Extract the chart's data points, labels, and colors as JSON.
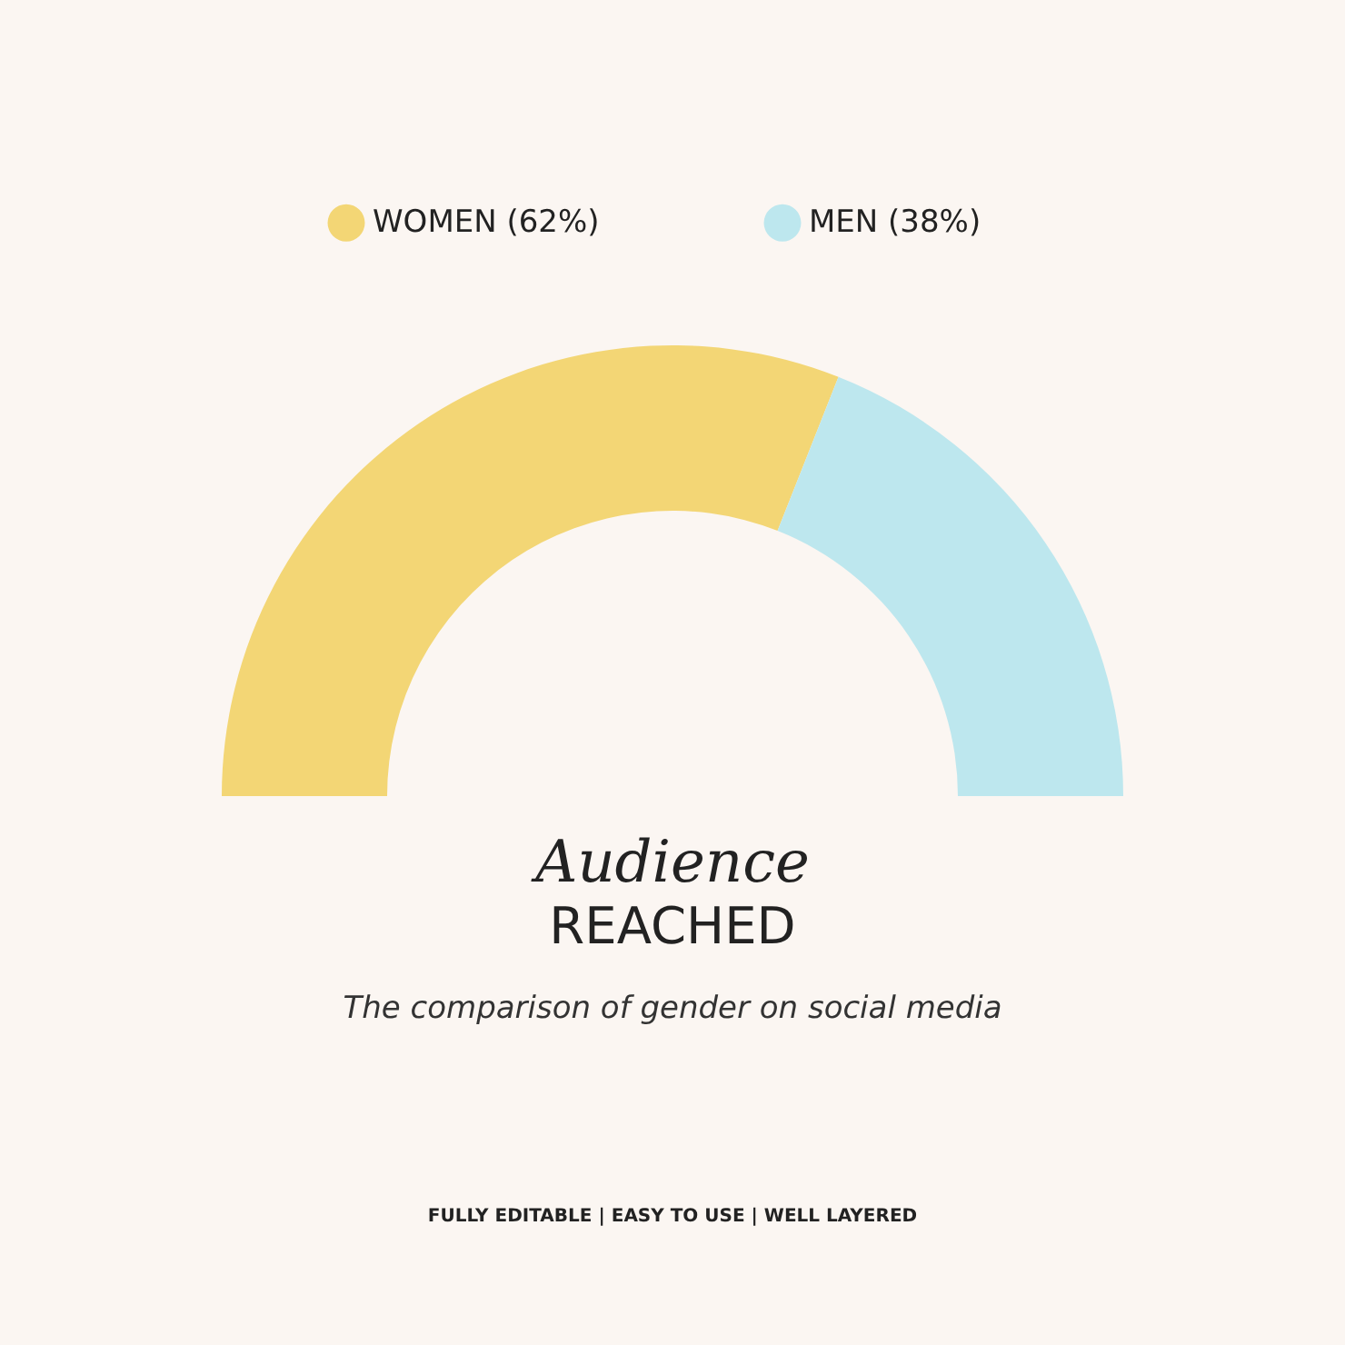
{
  "chart_data": {
    "type": "donut",
    "title": "Audience\nREACHED",
    "subtitle": "The comparison of gender on social media",
    "categories": [
      "WOMEN (62%)",
      "MEN (38%)"
    ],
    "values": [
      62,
      38
    ],
    "colors": [
      "#f3d675",
      "#bde7ee"
    ],
    "legend": "top",
    "annotations": [
      "FULLY EDITABLE   |   EASY TO USE   |   WELL LAYERED"
    ]
  }
}
